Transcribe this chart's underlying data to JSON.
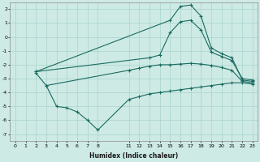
{
  "background_color": "#ceeae5",
  "grid_color": "#a8d4ce",
  "line_color": "#1a6b60",
  "xlabel": "Humidex (Indice chaleur)",
  "xlim": [
    -0.5,
    23.5
  ],
  "ylim": [
    -7.5,
    2.5
  ],
  "yticks": [
    -7,
    -6,
    -5,
    -4,
    -3,
    -2,
    -1,
    0,
    1,
    2
  ],
  "xticks": [
    0,
    1,
    2,
    3,
    4,
    5,
    6,
    7,
    8,
    11,
    12,
    13,
    14,
    15,
    16,
    17,
    18,
    19,
    20,
    21,
    22,
    23
  ],
  "line1_x": [
    2,
    15,
    16,
    17,
    18,
    19,
    20,
    21,
    22,
    23
  ],
  "line1_y": [
    -2.5,
    1.2,
    2.2,
    2.3,
    1.5,
    -0.8,
    -1.2,
    -1.5,
    -3.1,
    -3.2
  ],
  "line2_x": [
    2,
    13,
    14,
    15,
    16,
    17,
    18,
    19,
    20,
    21,
    22,
    23
  ],
  "line2_y": [
    -2.5,
    -1.5,
    -1.3,
    0.3,
    1.1,
    1.2,
    0.5,
    -1.1,
    -1.4,
    -1.7,
    -3.0,
    -3.1
  ],
  "line3_x": [
    2,
    3,
    11,
    12,
    13,
    14,
    15,
    16,
    17,
    18,
    19,
    20,
    21,
    22,
    23
  ],
  "line3_y": [
    -2.6,
    -3.5,
    -2.4,
    -2.25,
    -2.1,
    -2.0,
    -2.0,
    -1.95,
    -1.9,
    -1.95,
    -2.05,
    -2.2,
    -2.4,
    -3.2,
    -3.3
  ],
  "line4_x": [
    3,
    4,
    5,
    6,
    7,
    8,
    11,
    12,
    13,
    14,
    15,
    16,
    17,
    18,
    19,
    20,
    21,
    22,
    23
  ],
  "line4_y": [
    -3.5,
    -5.0,
    -5.1,
    -5.4,
    -6.0,
    -6.7,
    -4.5,
    -4.3,
    -4.1,
    -4.0,
    -3.9,
    -3.8,
    -3.7,
    -3.6,
    -3.5,
    -3.4,
    -3.3,
    -3.3,
    -3.4
  ]
}
